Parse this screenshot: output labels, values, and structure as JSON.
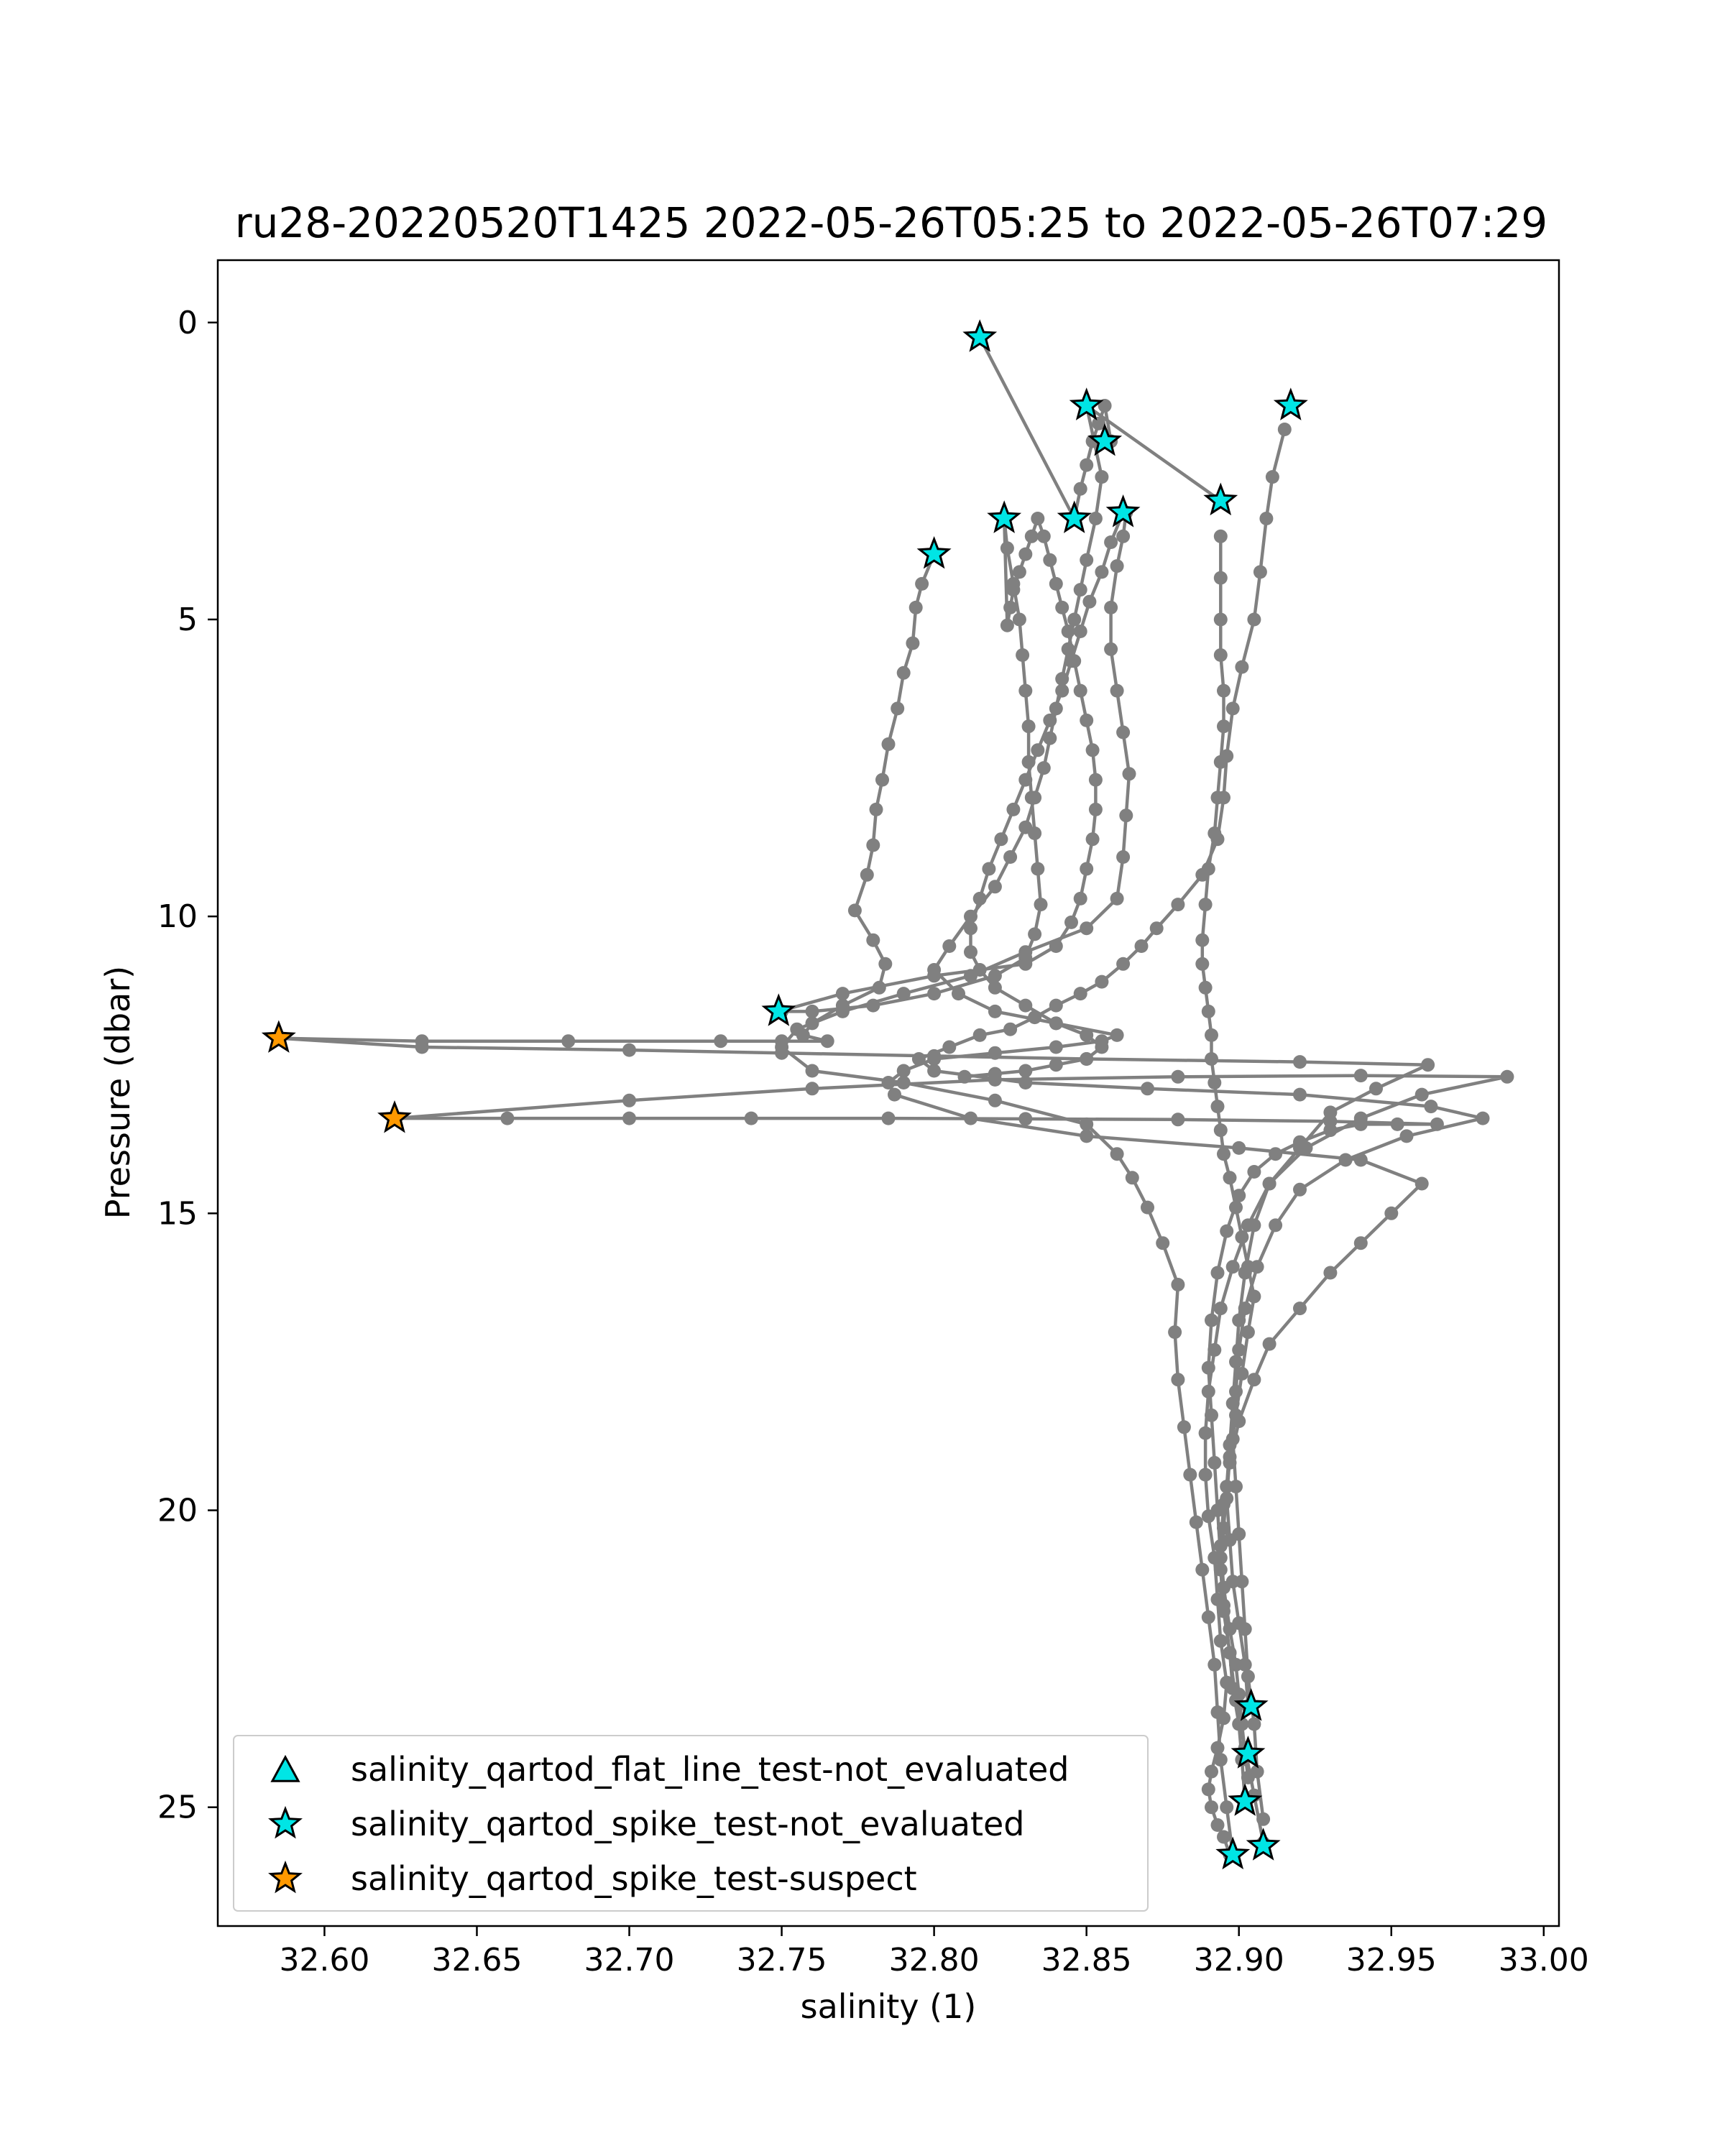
{
  "chart_data": {
    "type": "scatter",
    "title": "ru28-20220520T1425 2022-05-26T05:25 to 2022-05-26T07:29",
    "xlabel": "salinity (1)",
    "ylabel": "Pressure (dbar)",
    "xlim": [
      32.565,
      33.005
    ],
    "ylim": [
      27.0,
      -1.05
    ],
    "y_inverted": true,
    "grid": false,
    "legend_position": "lower left",
    "xticks": [
      32.6,
      32.65,
      32.7,
      32.75,
      32.8,
      32.85,
      32.9,
      32.95,
      33.0
    ],
    "xtick_labels": [
      "32.60",
      "32.65",
      "32.70",
      "32.75",
      "32.80",
      "32.85",
      "32.90",
      "32.95",
      "33.00"
    ],
    "yticks": [
      0,
      5,
      10,
      15,
      20,
      25
    ],
    "ytick_labels": [
      "0",
      "5",
      "10",
      "15",
      "20",
      "25"
    ],
    "colors": {
      "profile": "#808080",
      "not_evaluated": "#00e5e5",
      "suspect": "#ff9900",
      "marker_edge": "#000000"
    },
    "profiles": [
      {
        "x": [
          32.8,
          32.796,
          32.794,
          32.793,
          32.79,
          32.788,
          32.785,
          32.783,
          32.781,
          32.78,
          32.778,
          32.774,
          32.78,
          32.784,
          32.782,
          32.77,
          32.76,
          32.757,
          32.765,
          32.75,
          32.73,
          32.68,
          32.632,
          32.585
        ],
        "y": [
          3.9,
          4.4,
          4.8,
          5.4,
          5.9,
          6.5,
          7.1,
          7.7,
          8.2,
          8.8,
          9.3,
          9.9,
          10.4,
          10.8,
          11.2,
          11.5,
          11.8,
          12.0,
          12.1,
          12.1,
          12.1,
          12.1,
          12.1,
          12.05
        ]
      },
      {
        "x": [
          32.585,
          32.632,
          32.7,
          32.75,
          32.8,
          32.85,
          32.92,
          32.962,
          32.945,
          32.93,
          32.92,
          32.91,
          32.905,
          32.902,
          32.9,
          32.899,
          32.898,
          32.897,
          32.896,
          32.895,
          32.894,
          32.895,
          32.897,
          32.898,
          32.9,
          32.901,
          32.902
        ],
        "y": [
          12.05,
          12.2,
          12.25,
          12.3,
          12.35,
          12.4,
          12.45,
          12.5,
          12.9,
          13.3,
          13.9,
          14.5,
          15.2,
          16.0,
          16.8,
          17.5,
          18.2,
          18.9,
          19.6,
          20.3,
          21.0,
          21.7,
          22.4,
          23.0,
          23.6,
          24.2,
          24.9
        ]
      },
      {
        "x": [
          32.903,
          32.902,
          32.9,
          32.898,
          32.897,
          32.896,
          32.897,
          32.899,
          32.901,
          32.903,
          32.905,
          32.903,
          32.901,
          32.899,
          32.897,
          32.895,
          32.894,
          32.893,
          32.892,
          32.891,
          32.891,
          32.89,
          32.889,
          32.888,
          32.888,
          32.889,
          32.89,
          32.892,
          32.893,
          32.894,
          32.895,
          32.895,
          32.894,
          32.894,
          32.894,
          32.894
        ],
        "y": [
          23.3,
          22.6,
          21.9,
          21.2,
          20.5,
          19.8,
          19.1,
          18.4,
          17.7,
          17.0,
          16.4,
          15.9,
          15.4,
          14.9,
          14.4,
          14.0,
          13.6,
          13.2,
          12.8,
          12.4,
          12.0,
          11.6,
          11.2,
          10.8,
          10.4,
          9.8,
          9.2,
          8.6,
          8.0,
          7.4,
          6.8,
          6.2,
          5.6,
          5.0,
          4.3,
          3.6
        ]
      },
      {
        "x": [
          32.894,
          32.85,
          32.855,
          32.853,
          32.85,
          32.848,
          32.846,
          32.844,
          32.842,
          32.84,
          32.838,
          32.836,
          32.833,
          32.83,
          32.825,
          32.82,
          32.812,
          32.805,
          32.8,
          32.808,
          32.82,
          32.84,
          32.86,
          32.855,
          32.84,
          32.82,
          32.8,
          32.79,
          32.785,
          32.787,
          32.812,
          32.85,
          32.9,
          32.94,
          32.96,
          32.95,
          32.94,
          32.93,
          32.92,
          32.91,
          32.905,
          32.9,
          32.897,
          32.895,
          32.894,
          32.895,
          32.897,
          32.899,
          32.9,
          32.901,
          32.902,
          32.903
        ],
        "y": [
          3.0,
          1.4,
          2.6,
          3.3,
          4.0,
          4.5,
          5.0,
          5.5,
          6.0,
          6.5,
          7.0,
          7.5,
          8.0,
          8.5,
          9.0,
          9.5,
          10.0,
          10.5,
          10.9,
          11.3,
          11.6,
          11.8,
          12.0,
          12.1,
          12.2,
          12.3,
          12.4,
          12.6,
          12.8,
          13.0,
          13.4,
          13.7,
          13.9,
          14.1,
          14.5,
          15.0,
          15.5,
          16.0,
          16.6,
          17.2,
          17.8,
          18.5,
          19.2,
          19.9,
          20.6,
          21.3,
          22.0,
          22.6,
          23.1,
          23.6,
          24.1,
          24.5
        ]
      },
      {
        "x": [
          32.915,
          32.911,
          32.909,
          32.907,
          32.905,
          32.901,
          32.898,
          32.896,
          32.895,
          32.893,
          32.888,
          32.88,
          32.873,
          32.868,
          32.862,
          32.855,
          32.848,
          32.84,
          32.833,
          32.825,
          32.815,
          32.805,
          32.795,
          32.8,
          32.83,
          32.87,
          32.92,
          32.963,
          32.98,
          32.955,
          32.935,
          32.92,
          32.912,
          32.906,
          32.902,
          32.9,
          32.899,
          32.898,
          32.899,
          32.9,
          32.901,
          32.902,
          32.903,
          32.905,
          32.906,
          32.908
        ],
        "y": [
          1.8,
          2.6,
          3.3,
          4.2,
          5.0,
          5.8,
          6.5,
          7.3,
          8.0,
          8.7,
          9.3,
          9.8,
          10.2,
          10.5,
          10.8,
          11.1,
          11.3,
          11.5,
          11.7,
          11.9,
          12.0,
          12.2,
          12.4,
          12.6,
          12.8,
          12.9,
          13.0,
          13.2,
          13.4,
          13.7,
          14.1,
          14.6,
          15.2,
          15.9,
          16.6,
          17.3,
          18.0,
          18.8,
          19.6,
          20.4,
          21.2,
          22.0,
          22.8,
          23.6,
          24.4,
          25.2
        ]
      },
      {
        "x": [
          32.908,
          32.905,
          32.902,
          32.899,
          32.897,
          32.895,
          32.894,
          32.893,
          32.892,
          32.891,
          32.89,
          32.891,
          32.893,
          32.896,
          32.9,
          32.905,
          32.912,
          32.92,
          32.93,
          32.94,
          32.952,
          32.965,
          32.93,
          32.88,
          32.83,
          32.785,
          32.74,
          32.7,
          32.66,
          32.623
        ],
        "y": [
          25.6,
          24.8,
          24.0,
          23.2,
          22.4,
          21.6,
          20.8,
          20.0,
          19.2,
          18.4,
          17.6,
          16.8,
          16.0,
          15.3,
          14.7,
          14.3,
          14.0,
          13.8,
          13.6,
          13.5,
          13.5,
          13.5,
          13.45,
          13.42,
          13.41,
          13.4,
          13.4,
          13.4,
          13.4,
          13.4
        ]
      },
      {
        "x": [
          32.623,
          32.7,
          32.76,
          32.82,
          32.88,
          32.94,
          32.988,
          32.96,
          32.94,
          32.922,
          32.91,
          32.903,
          32.898,
          32.894,
          32.892,
          32.89,
          32.889,
          32.889,
          32.89,
          32.892,
          32.893,
          32.894,
          32.896,
          32.895,
          32.893,
          32.891,
          32.89,
          32.891,
          32.893,
          32.895,
          32.897
        ],
        "y": [
          13.4,
          13.1,
          12.9,
          12.75,
          12.7,
          12.68,
          12.7,
          13.0,
          13.4,
          13.9,
          14.5,
          15.2,
          15.9,
          16.6,
          17.3,
          18.0,
          18.7,
          19.4,
          20.1,
          20.8,
          21.5,
          22.2,
          22.9,
          23.5,
          24.0,
          24.4,
          24.7,
          25.0,
          25.3,
          25.5,
          25.8
        ]
      },
      {
        "x": [
          32.898,
          32.896,
          32.894,
          32.893,
          32.892,
          32.89,
          32.888,
          32.886,
          32.884,
          32.882,
          32.88,
          32.879,
          32.88,
          32.875,
          32.87,
          32.865,
          32.86,
          32.85,
          32.82,
          32.79,
          32.76,
          32.75,
          32.755,
          32.77,
          32.79,
          32.812,
          32.83,
          32.85,
          32.86,
          32.862,
          32.863,
          32.864,
          32.862,
          32.86,
          32.858,
          32.858,
          32.86,
          32.862,
          32.863
        ],
        "y": [
          25.8,
          25.0,
          24.2,
          23.4,
          22.6,
          21.8,
          21.0,
          20.2,
          19.4,
          18.6,
          17.8,
          17.0,
          16.2,
          15.5,
          14.9,
          14.4,
          14.0,
          13.5,
          13.1,
          12.8,
          12.6,
          12.2,
          11.9,
          11.6,
          11.3,
          11.0,
          10.6,
          10.2,
          9.7,
          9.0,
          8.3,
          7.6,
          6.9,
          6.2,
          5.5,
          4.8,
          4.1,
          3.6,
          3.2
        ]
      },
      {
        "x": [
          32.862,
          32.858,
          32.855,
          32.851,
          32.848,
          32.845,
          32.842,
          32.838,
          32.834,
          32.83,
          32.826,
          32.822,
          32.818,
          32.815,
          32.812,
          32.812,
          32.815,
          32.82,
          32.83,
          32.84,
          32.85,
          32.855,
          32.85,
          32.84,
          32.83,
          32.82,
          32.81
        ],
        "y": [
          3.2,
          3.7,
          4.2,
          4.7,
          5.2,
          5.7,
          6.2,
          6.7,
          7.2,
          7.7,
          8.2,
          8.7,
          9.2,
          9.7,
          10.2,
          10.6,
          10.9,
          11.2,
          11.5,
          11.8,
          12.0,
          12.2,
          12.4,
          12.5,
          12.6,
          12.65,
          12.7
        ]
      },
      {
        "x": [
          32.749,
          32.77,
          32.8,
          32.83,
          32.84,
          32.845,
          32.848,
          32.85,
          32.852,
          32.853,
          32.853,
          32.852,
          32.85,
          32.848,
          32.846,
          32.844,
          32.842,
          32.84,
          32.838,
          32.836,
          32.834,
          32.832,
          32.83,
          32.828,
          32.826,
          32.825,
          32.824,
          32.823
        ],
        "y": [
          11.6,
          11.3,
          11.0,
          10.8,
          10.5,
          10.1,
          9.7,
          9.2,
          8.7,
          8.2,
          7.7,
          7.2,
          6.7,
          6.2,
          5.7,
          5.2,
          4.8,
          4.4,
          4.0,
          3.6,
          3.3,
          3.6,
          3.9,
          4.2,
          4.5,
          4.8,
          5.1,
          3.3
        ]
      },
      {
        "x": [
          32.823,
          32.824,
          32.826,
          32.828,
          32.829,
          32.83,
          32.831,
          32.831,
          32.832,
          32.833,
          32.834,
          32.835,
          32.833,
          32.83,
          32.82,
          32.8,
          32.78,
          32.76,
          32.75
        ],
        "y": [
          3.3,
          3.8,
          4.4,
          5.0,
          5.6,
          6.2,
          6.8,
          7.4,
          8.0,
          8.6,
          9.2,
          9.8,
          10.3,
          10.7,
          11.0,
          11.3,
          11.5,
          11.6,
          11.6
        ]
      },
      {
        "x": [
          32.815,
          32.846,
          32.848,
          32.85,
          32.852,
          32.854,
          32.856,
          32.858
        ],
        "y": [
          0.25,
          3.3,
          2.8,
          2.4,
          2.0,
          1.7,
          1.4,
          2.0
        ]
      }
    ],
    "flag_markers": [
      {
        "x": 32.815,
        "y": 0.25,
        "flag": "salinity_qartod_spike_test-not_evaluated"
      },
      {
        "x": 32.85,
        "y": 1.4,
        "flag": "salinity_qartod_spike_test-not_evaluated"
      },
      {
        "x": 32.917,
        "y": 1.4,
        "flag": "salinity_qartod_spike_test-not_evaluated"
      },
      {
        "x": 32.856,
        "y": 2.0,
        "flag": "salinity_qartod_spike_test-not_evaluated"
      },
      {
        "x": 32.894,
        "y": 3.0,
        "flag": "salinity_qartod_spike_test-not_evaluated"
      },
      {
        "x": 32.823,
        "y": 3.3,
        "flag": "salinity_qartod_spike_test-not_evaluated"
      },
      {
        "x": 32.846,
        "y": 3.3,
        "flag": "salinity_qartod_spike_test-not_evaluated"
      },
      {
        "x": 32.862,
        "y": 3.2,
        "flag": "salinity_qartod_spike_test-not_evaluated"
      },
      {
        "x": 32.8,
        "y": 3.9,
        "flag": "salinity_qartod_spike_test-not_evaluated"
      },
      {
        "x": 32.749,
        "y": 11.6,
        "flag": "salinity_qartod_spike_test-not_evaluated"
      },
      {
        "x": 32.585,
        "y": 12.05,
        "flag": "salinity_qartod_spike_test-suspect"
      },
      {
        "x": 32.623,
        "y": 13.4,
        "flag": "salinity_qartod_spike_test-suspect"
      },
      {
        "x": 32.904,
        "y": 23.3,
        "flag": "salinity_qartod_spike_test-not_evaluated"
      },
      {
        "x": 32.903,
        "y": 24.1,
        "flag": "salinity_qartod_spike_test-not_evaluated"
      },
      {
        "x": 32.902,
        "y": 24.9,
        "flag": "salinity_qartod_spike_test-not_evaluated"
      },
      {
        "x": 32.908,
        "y": 25.65,
        "flag": "salinity_qartod_spike_test-not_evaluated"
      },
      {
        "x": 32.898,
        "y": 25.8,
        "flag": "salinity_qartod_spike_test-not_evaluated"
      }
    ],
    "legend": [
      {
        "label": "salinity_qartod_flat_line_test-not_evaluated",
        "marker": "triangle",
        "color": "#00e5e5"
      },
      {
        "label": "salinity_qartod_spike_test-not_evaluated",
        "marker": "star",
        "color": "#00e5e5"
      },
      {
        "label": "salinity_qartod_spike_test-suspect",
        "marker": "star",
        "color": "#ff9900"
      }
    ]
  }
}
